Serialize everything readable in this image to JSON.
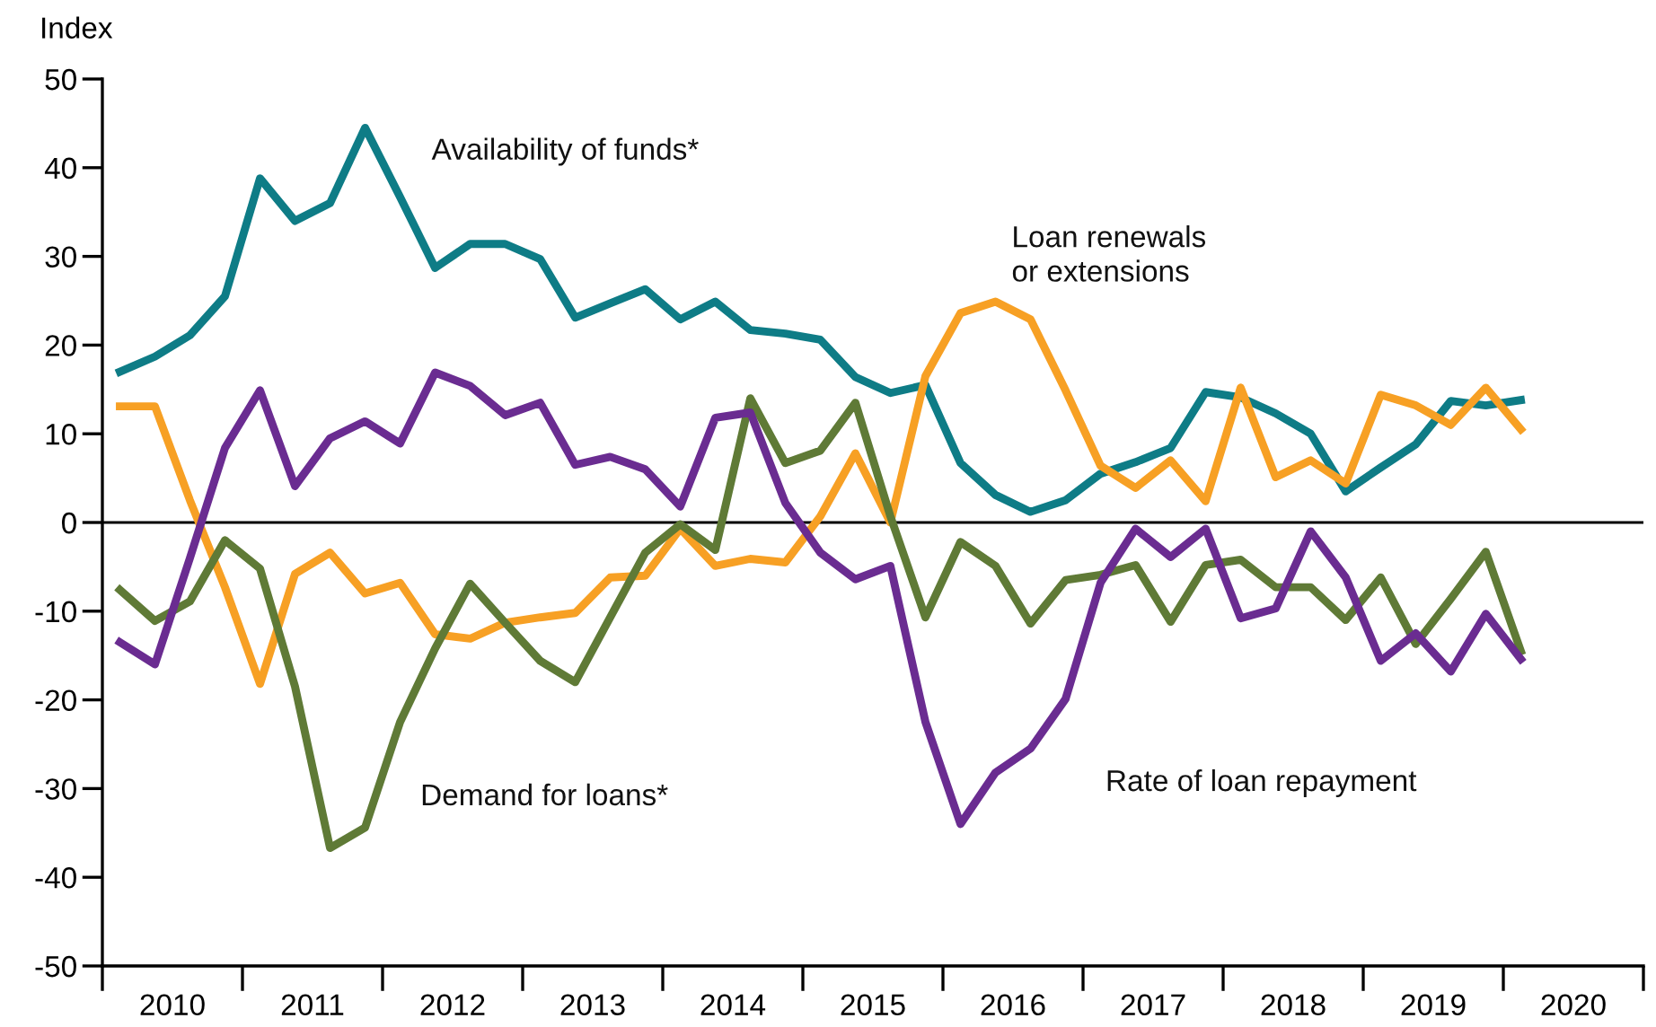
{
  "chart_data": {
    "type": "line",
    "ylabel": "Index",
    "x": [
      2010.125,
      2010.375,
      2010.625,
      2010.875,
      2011.125,
      2011.375,
      2011.625,
      2011.875,
      2012.125,
      2012.375,
      2012.625,
      2012.875,
      2013.125,
      2013.375,
      2013.625,
      2013.875,
      2014.125,
      2014.375,
      2014.625,
      2014.875,
      2015.125,
      2015.375,
      2015.625,
      2015.875,
      2016.125,
      2016.375,
      2016.625,
      2016.875,
      2017.125,
      2017.375,
      2017.625,
      2017.875,
      2018.125,
      2018.375,
      2018.625,
      2018.875,
      2019.125,
      2019.375,
      2019.625,
      2019.875,
      2020.125
    ],
    "series": [
      {
        "name": "Availability of funds*",
        "color": "#0e7c86",
        "values": [
          17,
          18.7,
          21.1,
          25.5,
          38.8,
          34,
          36,
          44.5,
          36.7,
          28.7,
          31.4,
          31.4,
          29.7,
          23.1,
          24.7,
          26.3,
          22.9,
          24.9,
          21.7,
          21.3,
          20.6,
          16.4,
          14.6,
          15.5,
          6.7,
          3.1,
          1.2,
          2.5,
          5.5,
          6.8,
          8.4,
          14.7,
          14.1,
          12.3,
          10,
          3.5,
          6.2,
          8.8,
          13.7,
          13.2,
          13.8
        ]
      },
      {
        "name": "Loan renewals\nor extensions",
        "color": "#f7a024",
        "values": [
          13.1,
          13.1,
          2.5,
          -7.3,
          -18.2,
          -5.8,
          -3.4,
          -8,
          -6.8,
          -12.6,
          -13.1,
          -11.3,
          -10.7,
          -10.2,
          -6.2,
          -6,
          -0.7,
          -4.9,
          -4.1,
          -4.5,
          0.7,
          7.8,
          0,
          16.5,
          23.6,
          24.9,
          22.9,
          14.9,
          6.4,
          3.9,
          7,
          2.4,
          15.2,
          5.1,
          7,
          4.4,
          14.4,
          13.2,
          11,
          15.2,
          10.5
        ]
      },
      {
        "name": "Demand for loans*",
        "color": "#5f7a36",
        "values": [
          -7.6,
          -11.1,
          -8.9,
          -2,
          -5.2,
          -18.5,
          -36.7,
          -34.4,
          -22.5,
          -14.2,
          -6.9,
          -11.3,
          -15.6,
          -18,
          -10.7,
          -3.4,
          -0.2,
          -3.1,
          14,
          6.7,
          8.1,
          13.5,
          0.7,
          -10.7,
          -2.2,
          -4.9,
          -11.4,
          -6.5,
          -5.9,
          -4.8,
          -11.2,
          -4.8,
          -4.2,
          -7.3,
          -7.3,
          -11,
          -6.2,
          -13.7,
          -8.6,
          -3.3,
          -14.5
        ]
      },
      {
        "name": "Rate of loan repayment",
        "color": "#6a2c91",
        "values": [
          -13.5,
          -16,
          -4,
          8.4,
          14.9,
          4.1,
          9.5,
          11.4,
          8.9,
          16.9,
          15.4,
          12.1,
          13.5,
          6.5,
          7.4,
          6,
          1.8,
          11.8,
          12.4,
          2.2,
          -3.4,
          -6.4,
          -4.9,
          -22.5,
          -34,
          -28.2,
          -25.5,
          -19.9,
          -6.8,
          -0.7,
          -3.9,
          -0.7,
          -10.8,
          -9.7,
          -1,
          -6.2,
          -15.6,
          -12.5,
          -16.8,
          -10.3,
          -15.4
        ]
      }
    ],
    "xlim": [
      2010,
      2021
    ],
    "xticks": [
      {
        "value": 2010,
        "label": null
      },
      {
        "value": 2010.5,
        "label": "2010"
      },
      {
        "value": 2011,
        "label": null
      },
      {
        "value": 2011.5,
        "label": "2011"
      },
      {
        "value": 2012,
        "label": null
      },
      {
        "value": 2012.5,
        "label": "2012"
      },
      {
        "value": 2013,
        "label": null
      },
      {
        "value": 2013.5,
        "label": "2013"
      },
      {
        "value": 2014,
        "label": null
      },
      {
        "value": 2014.5,
        "label": "2014"
      },
      {
        "value": 2015,
        "label": null
      },
      {
        "value": 2015.5,
        "label": "2015"
      },
      {
        "value": 2016,
        "label": null
      },
      {
        "value": 2016.5,
        "label": "2016"
      },
      {
        "value": 2017,
        "label": null
      },
      {
        "value": 2017.5,
        "label": "2017"
      },
      {
        "value": 2018,
        "label": null
      },
      {
        "value": 2018.5,
        "label": "2018"
      },
      {
        "value": 2019,
        "label": null
      },
      {
        "value": 2019.5,
        "label": "2019"
      },
      {
        "value": 2020,
        "label": null
      },
      {
        "value": 2020.5,
        "label": "2020"
      },
      {
        "value": 2021,
        "label": null
      }
    ],
    "ylim": [
      -50,
      50
    ],
    "yticks": [
      -50,
      -40,
      -30,
      -20,
      -10,
      0,
      10,
      20,
      30,
      40,
      50
    ],
    "ref_lines": [
      {
        "axis": "y",
        "value": 0,
        "color": "#000000"
      }
    ],
    "grid": false,
    "legend": false,
    "marker": "none",
    "line_style": "solid"
  }
}
